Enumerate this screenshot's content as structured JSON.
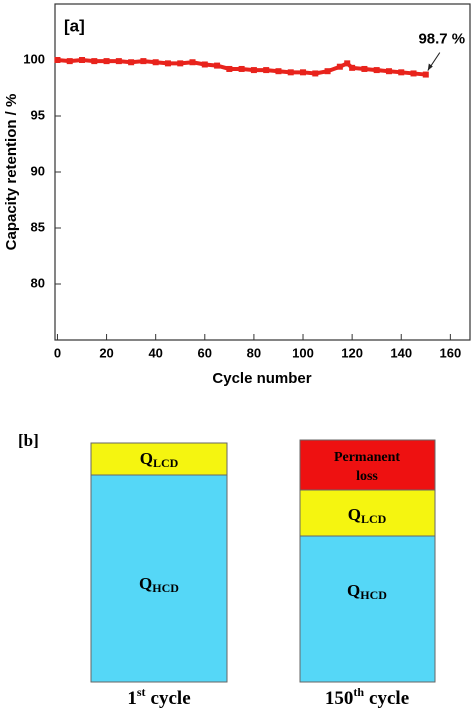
{
  "chart_data": {
    "type": "line",
    "panel_label": "[a]",
    "x": [
      0,
      5,
      10,
      15,
      20,
      25,
      30,
      35,
      40,
      45,
      50,
      55,
      60,
      65,
      70,
      75,
      80,
      85,
      90,
      95,
      100,
      105,
      110,
      115,
      118,
      120,
      125,
      130,
      135,
      140,
      145,
      150
    ],
    "values": [
      100,
      99.9,
      100,
      99.9,
      99.9,
      99.9,
      99.8,
      99.9,
      99.8,
      99.7,
      99.7,
      99.8,
      99.6,
      99.5,
      99.2,
      99.2,
      99.1,
      99.1,
      99.0,
      98.9,
      98.9,
      98.8,
      99.0,
      99.4,
      99.7,
      99.3,
      99.2,
      99.1,
      99.0,
      98.9,
      98.8,
      98.7
    ],
    "color": "#e8231c",
    "xlim": [
      -1,
      168
    ],
    "ylim": [
      75,
      105
    ],
    "xticks": [
      0,
      20,
      40,
      60,
      80,
      100,
      120,
      140,
      160
    ],
    "yticks": [
      80,
      85,
      90,
      95,
      100
    ],
    "xlabel": "Cycle number",
    "ylabel": "Capacity retention / %",
    "annotation": "98.7 %"
  },
  "diagram": {
    "panel_label": "[b]",
    "left": {
      "segments": [
        {
          "symbol": "Q",
          "subscript": "LCD"
        },
        {
          "symbol": "Q",
          "subscript": "HCD"
        }
      ],
      "caption": {
        "number": "1",
        "superscript": "st",
        "word": "cycle"
      }
    },
    "right": {
      "segments": [
        {
          "lines": [
            "Permanent",
            "loss"
          ]
        },
        {
          "symbol": "Q",
          "subscript": "LCD"
        },
        {
          "symbol": "Q",
          "subscript": "HCD"
        }
      ],
      "caption": {
        "number": "150",
        "superscript": "th",
        "word": "cycle"
      }
    }
  }
}
